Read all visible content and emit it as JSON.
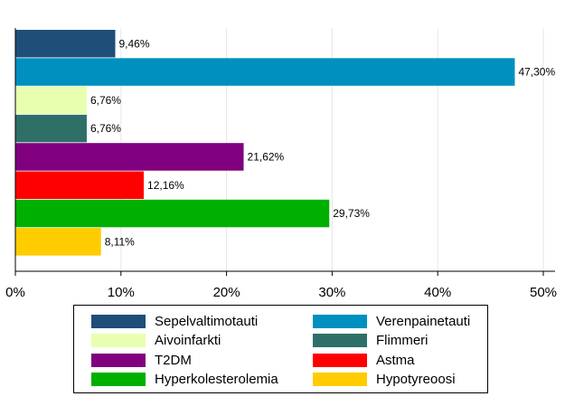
{
  "chart_data": {
    "type": "bar",
    "orientation": "horizontal",
    "title": "",
    "xlabel": "",
    "ylabel": "",
    "xlim": [
      0,
      50
    ],
    "x_ticks": [
      "0%",
      "10%",
      "20%",
      "30%",
      "40%",
      "50%"
    ],
    "grid": true,
    "legend_position": "bottom",
    "categories": [
      "Sepelvaltimotauti",
      "Verenpainetauti",
      "Aivoinfarkti",
      "Flimmeri",
      "T2DM",
      "Astma",
      "Hyperkolesterolemia",
      "Hypotyreoosi"
    ],
    "values": [
      9.46,
      47.3,
      6.76,
      6.76,
      21.62,
      12.16,
      29.73,
      8.11
    ],
    "value_labels": [
      "9,46%",
      "47,30%",
      "6,76%",
      "6,76%",
      "21,62%",
      "12,16%",
      "29,73%",
      "8,11%"
    ],
    "colors": [
      "#1f4e79",
      "#0090c0",
      "#e8ffb0",
      "#2e7068",
      "#800080",
      "#ff0000",
      "#00b000",
      "#ffcc00"
    ]
  }
}
